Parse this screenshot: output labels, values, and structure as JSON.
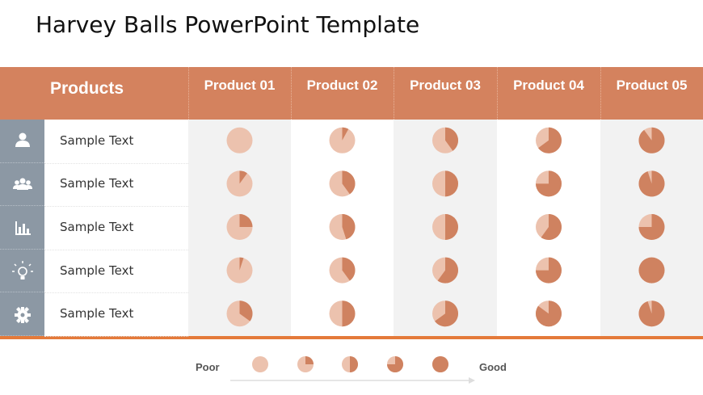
{
  "title": "Harvey Balls PowerPoint Template",
  "table": {
    "header": "Products",
    "columns": [
      "Product 01",
      "Product 02",
      "Product 03",
      "Product 04",
      "Product 05"
    ],
    "rows": [
      {
        "label": "Sample Text",
        "values": [
          0,
          8,
          40,
          65,
          90
        ]
      },
      {
        "label": "Sample Text",
        "values": [
          10,
          40,
          50,
          75,
          95
        ]
      },
      {
        "label": "Sample Text",
        "values": [
          25,
          45,
          50,
          60,
          75
        ]
      },
      {
        "label": "Sample Text",
        "values": [
          5,
          40,
          60,
          75,
          100
        ]
      },
      {
        "label": "Sample Text",
        "values": [
          35,
          50,
          65,
          85,
          95
        ]
      }
    ]
  },
  "legend": {
    "low": "Poor",
    "high": "Good",
    "values": [
      0,
      25,
      50,
      75,
      100
    ]
  }
}
